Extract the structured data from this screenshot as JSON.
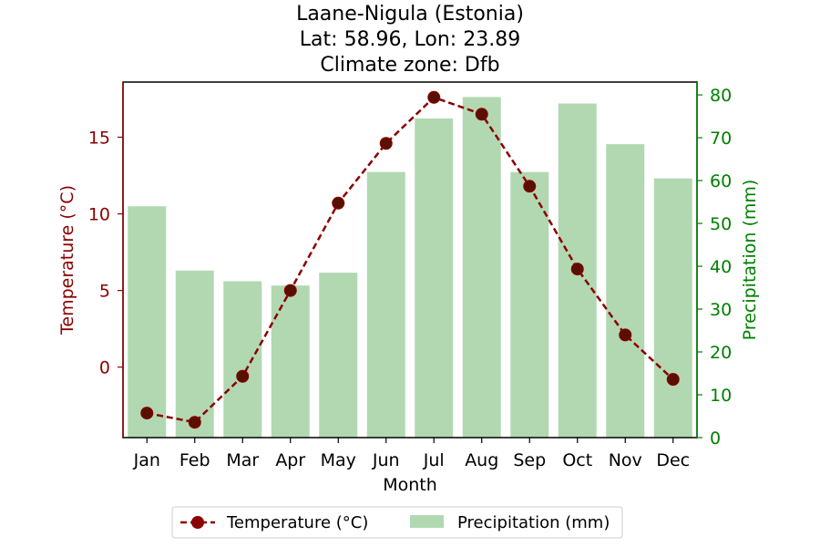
{
  "chart_data": {
    "type": "bar+line",
    "title_lines": [
      "Laane-Nigula (Estonia)",
      "Lat: 58.96, Lon: 23.89",
      "Climate zone: Dfb"
    ],
    "xlabel": "Month",
    "ylabel_left": "Temperature (°C)",
    "ylabel_right": "Precipitation (mm)",
    "categories": [
      "Jan",
      "Feb",
      "Mar",
      "Apr",
      "May",
      "Jun",
      "Jul",
      "Aug",
      "Sep",
      "Oct",
      "Nov",
      "Dec"
    ],
    "temperature": {
      "name": "Temperature (°C)",
      "values": [
        -3.0,
        -3.6,
        -0.6,
        5.0,
        10.7,
        14.6,
        17.6,
        16.5,
        11.8,
        6.4,
        2.1,
        -0.8
      ],
      "color": "#8b0000",
      "style": "dashed",
      "marker": "circle"
    },
    "precipitation": {
      "name": "Precipitation (mm)",
      "values": [
        54,
        39,
        36.5,
        35.5,
        38.5,
        62,
        74.5,
        79.5,
        62,
        78,
        68.5,
        60.5
      ],
      "color": "#b2d8b2"
    },
    "ylim_left": [
      -4.6,
      18.6
    ],
    "yticks_left": [
      0,
      5,
      10,
      15
    ],
    "ylim_right": [
      0,
      83
    ],
    "yticks_right": [
      0,
      10,
      20,
      30,
      40,
      50,
      60,
      70,
      80
    ],
    "left_axis_color": "#8b0000",
    "right_axis_color": "#008000",
    "legend_position": "bottom-center",
    "grid": false
  }
}
